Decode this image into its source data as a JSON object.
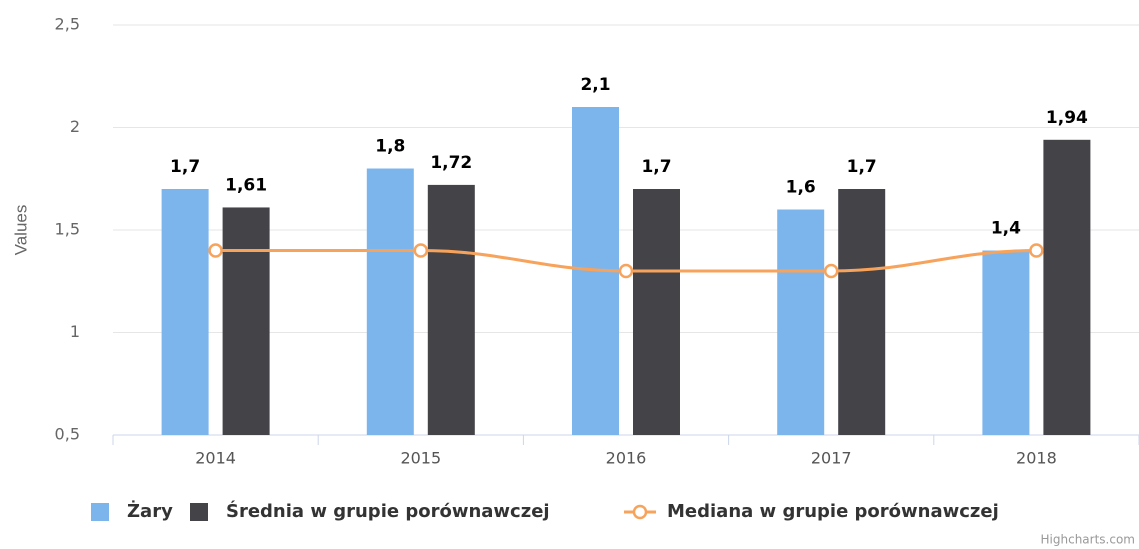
{
  "chart_data": {
    "type": "bar",
    "y_axis_title": "Values",
    "categories": [
      "2014",
      "2015",
      "2016",
      "2017",
      "2018"
    ],
    "series": [
      {
        "name": "Żary",
        "type": "bar",
        "color": "#7cb5ec",
        "values": [
          1.7,
          1.8,
          2.1,
          1.6,
          1.4
        ],
        "value_labels": [
          "1,7",
          "1,8",
          "2,1",
          "1,6",
          "1,4"
        ]
      },
      {
        "name": "Średnia w grupie porównawczej",
        "type": "bar",
        "color": "#434348",
        "values": [
          1.61,
          1.72,
          1.7,
          1.7,
          1.94
        ],
        "value_labels": [
          "1,61",
          "1,72",
          "1,7",
          "1,7",
          "1,94"
        ]
      },
      {
        "name": "Mediana w grupie porównawczej",
        "type": "line",
        "color": "#f7a35c",
        "values": [
          1.4,
          1.4,
          1.3,
          1.3,
          1.4
        ]
      }
    ],
    "ylim": [
      0.5,
      2.5
    ],
    "yticks": [
      {
        "value": 0.5,
        "label": "0,5"
      },
      1,
      {
        "value": 1.5,
        "label": "1,5"
      },
      2,
      {
        "value": 2.5,
        "label": "2,5"
      }
    ],
    "grid": true,
    "legend": "bottom",
    "credits": "Highcharts.com"
  }
}
